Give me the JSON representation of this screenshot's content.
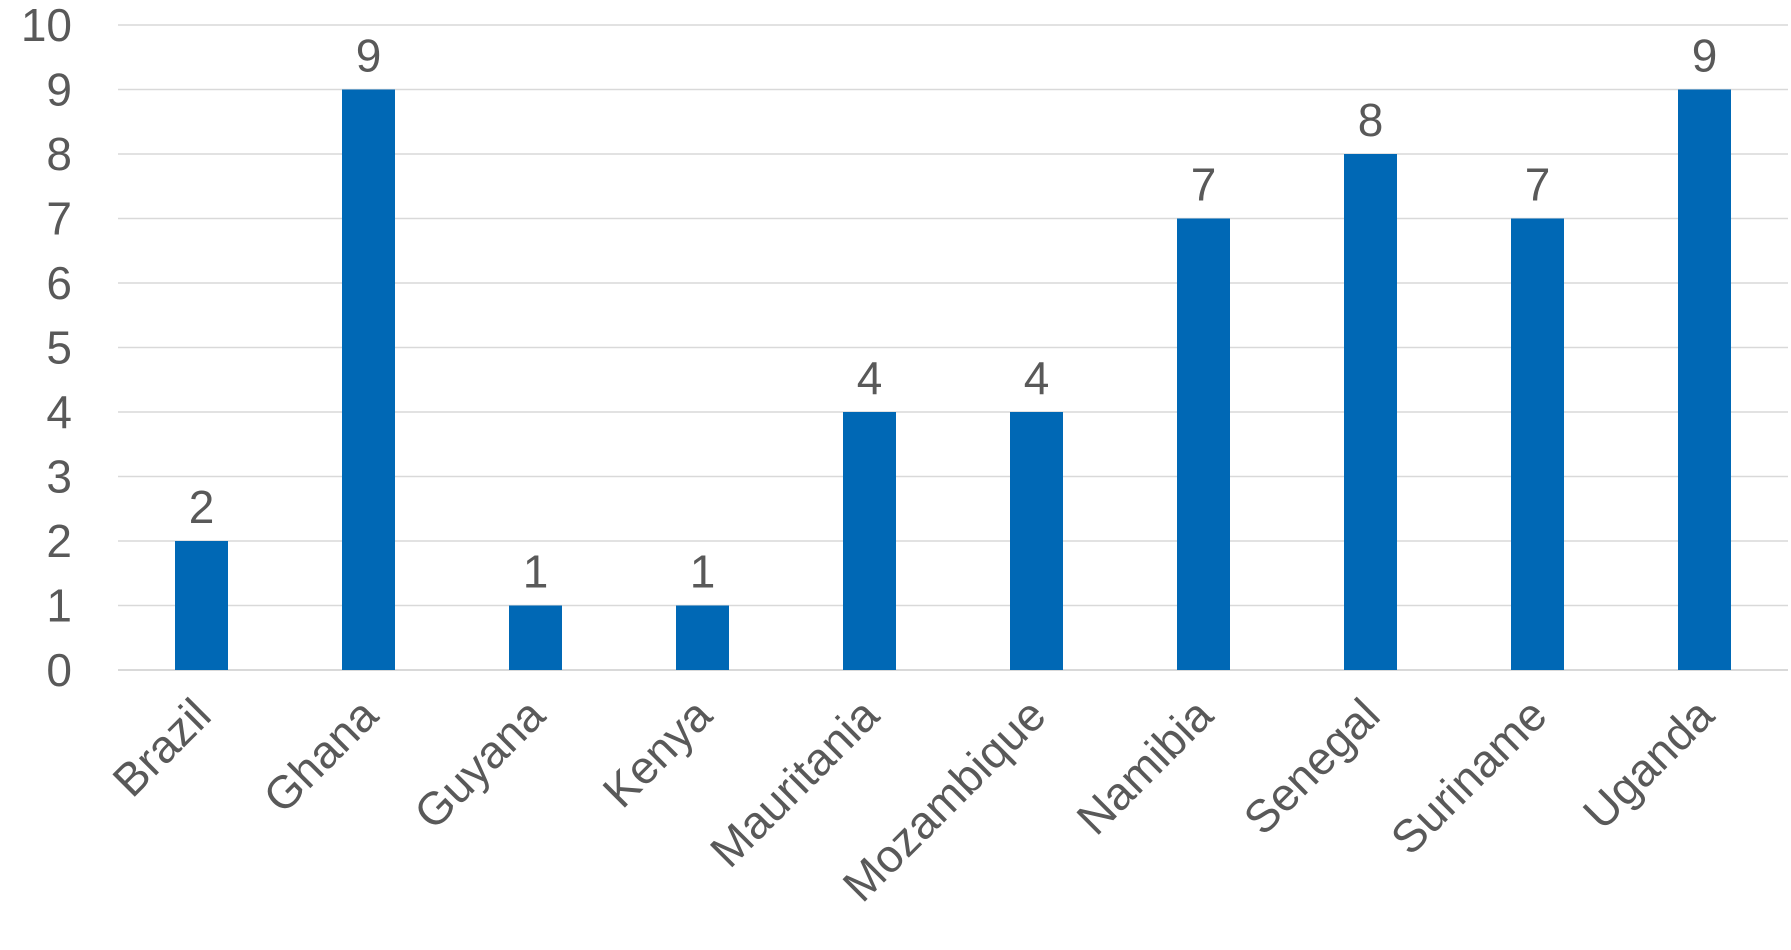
{
  "chart_data": {
    "type": "bar",
    "title": "",
    "xlabel": "",
    "ylabel": "",
    "categories": [
      "Brazil",
      "Ghana",
      "Guyana",
      "Kenya",
      "Mauritania",
      "Mozambique",
      "Namibia",
      "Senegal",
      "Suriname",
      "Uganda"
    ],
    "values": [
      2,
      9,
      1,
      1,
      4,
      4,
      7,
      8,
      7,
      9
    ],
    "ylim": [
      0,
      10
    ],
    "yticks": [
      "0",
      "1",
      "2",
      "3",
      "4",
      "5",
      "6",
      "7",
      "8",
      "9",
      "10"
    ],
    "grid": true,
    "legend": "none",
    "bar_color": "#0068b5",
    "data_labels": true
  }
}
